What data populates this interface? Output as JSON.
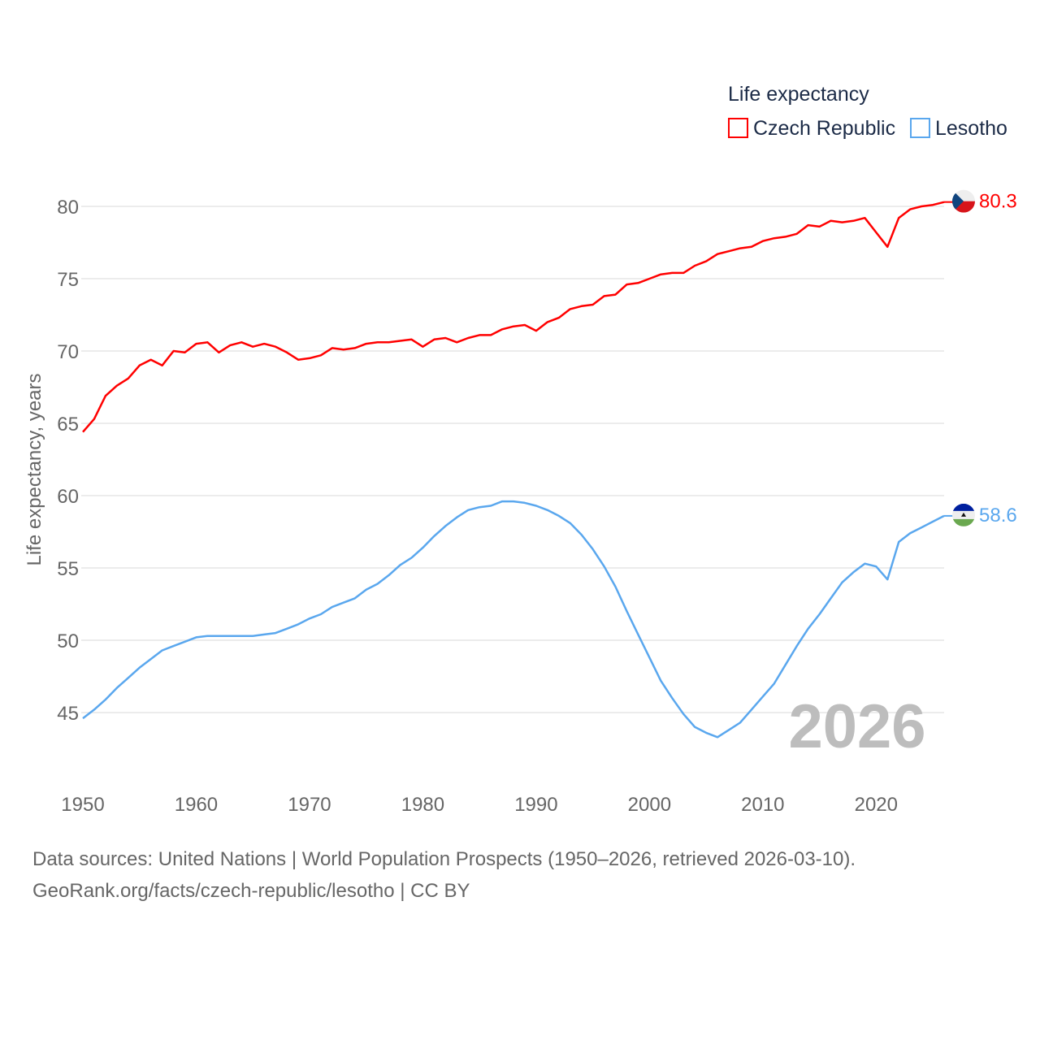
{
  "chart_data": {
    "type": "line",
    "title": "",
    "xlabel": "",
    "ylabel": "Life expectancy, years",
    "legend_title": "Life expectancy",
    "legend_position": "top-right",
    "xlim": [
      1950,
      2026
    ],
    "ylim": [
      41.5,
      82.5
    ],
    "x_ticks": [
      1950,
      1960,
      1970,
      1980,
      1990,
      2000,
      2010,
      2020
    ],
    "y_ticks": [
      45,
      50,
      55,
      60,
      65,
      70,
      75,
      80
    ],
    "grid": true,
    "year_label": "2026",
    "x": [
      1950,
      1951,
      1952,
      1953,
      1954,
      1955,
      1956,
      1957,
      1958,
      1959,
      1960,
      1961,
      1962,
      1963,
      1964,
      1965,
      1966,
      1967,
      1968,
      1969,
      1970,
      1971,
      1972,
      1973,
      1974,
      1975,
      1976,
      1977,
      1978,
      1979,
      1980,
      1981,
      1982,
      1983,
      1984,
      1985,
      1986,
      1987,
      1988,
      1989,
      1990,
      1991,
      1992,
      1993,
      1994,
      1995,
      1996,
      1997,
      1998,
      1999,
      2000,
      2001,
      2002,
      2003,
      2004,
      2005,
      2006,
      2007,
      2008,
      2009,
      2010,
      2011,
      2012,
      2013,
      2014,
      2015,
      2016,
      2017,
      2018,
      2019,
      2020,
      2021,
      2022,
      2023,
      2024,
      2025,
      2026
    ],
    "series": [
      {
        "name": "Czech Republic",
        "color": "#ff0000",
        "end_label": "80.3",
        "flag": "czech-flag",
        "values": [
          64.4,
          65.3,
          66.9,
          67.6,
          68.1,
          69.0,
          69.4,
          69.0,
          70.0,
          69.9,
          70.5,
          70.6,
          69.9,
          70.4,
          70.6,
          70.3,
          70.5,
          70.3,
          69.9,
          69.4,
          69.5,
          69.7,
          70.2,
          70.1,
          70.2,
          70.5,
          70.6,
          70.6,
          70.7,
          70.8,
          70.3,
          70.8,
          70.9,
          70.6,
          70.9,
          71.1,
          71.1,
          71.5,
          71.7,
          71.8,
          71.4,
          72.0,
          72.3,
          72.9,
          73.1,
          73.2,
          73.8,
          73.9,
          74.6,
          74.7,
          75.0,
          75.3,
          75.4,
          75.4,
          75.9,
          76.2,
          76.7,
          76.9,
          77.1,
          77.2,
          77.6,
          77.8,
          77.9,
          78.1,
          78.7,
          78.6,
          79.0,
          78.9,
          79.0,
          79.2,
          78.2,
          77.2,
          79.2,
          79.8,
          80.0,
          80.1,
          80.3
        ]
      },
      {
        "name": "Lesotho",
        "color": "#5aa7ee",
        "end_label": "58.6",
        "flag": "lesotho-flag",
        "values": [
          44.6,
          45.2,
          45.9,
          46.7,
          47.4,
          48.1,
          48.7,
          49.3,
          49.6,
          49.9,
          50.2,
          50.3,
          50.3,
          50.3,
          50.3,
          50.3,
          50.4,
          50.5,
          50.8,
          51.1,
          51.5,
          51.8,
          52.3,
          52.6,
          52.9,
          53.5,
          53.9,
          54.5,
          55.2,
          55.7,
          56.4,
          57.2,
          57.9,
          58.5,
          59.0,
          59.2,
          59.3,
          59.6,
          59.6,
          59.5,
          59.3,
          59.0,
          58.6,
          58.1,
          57.3,
          56.3,
          55.1,
          53.7,
          52.0,
          50.4,
          48.8,
          47.2,
          46.0,
          44.9,
          44.0,
          43.6,
          43.3,
          43.8,
          44.3,
          45.2,
          46.1,
          47.0,
          48.3,
          49.6,
          50.8,
          51.8,
          52.9,
          54.0,
          54.7,
          55.3,
          55.1,
          54.2,
          56.8,
          57.4,
          57.8,
          58.2,
          58.6
        ]
      }
    ]
  },
  "footer": {
    "line1": "Data sources: United Nations | World Population Prospects (1950–2026, retrieved 2026-03-10).",
    "line2": "GeoRank.org/facts/czech-republic/lesotho | CC BY"
  }
}
